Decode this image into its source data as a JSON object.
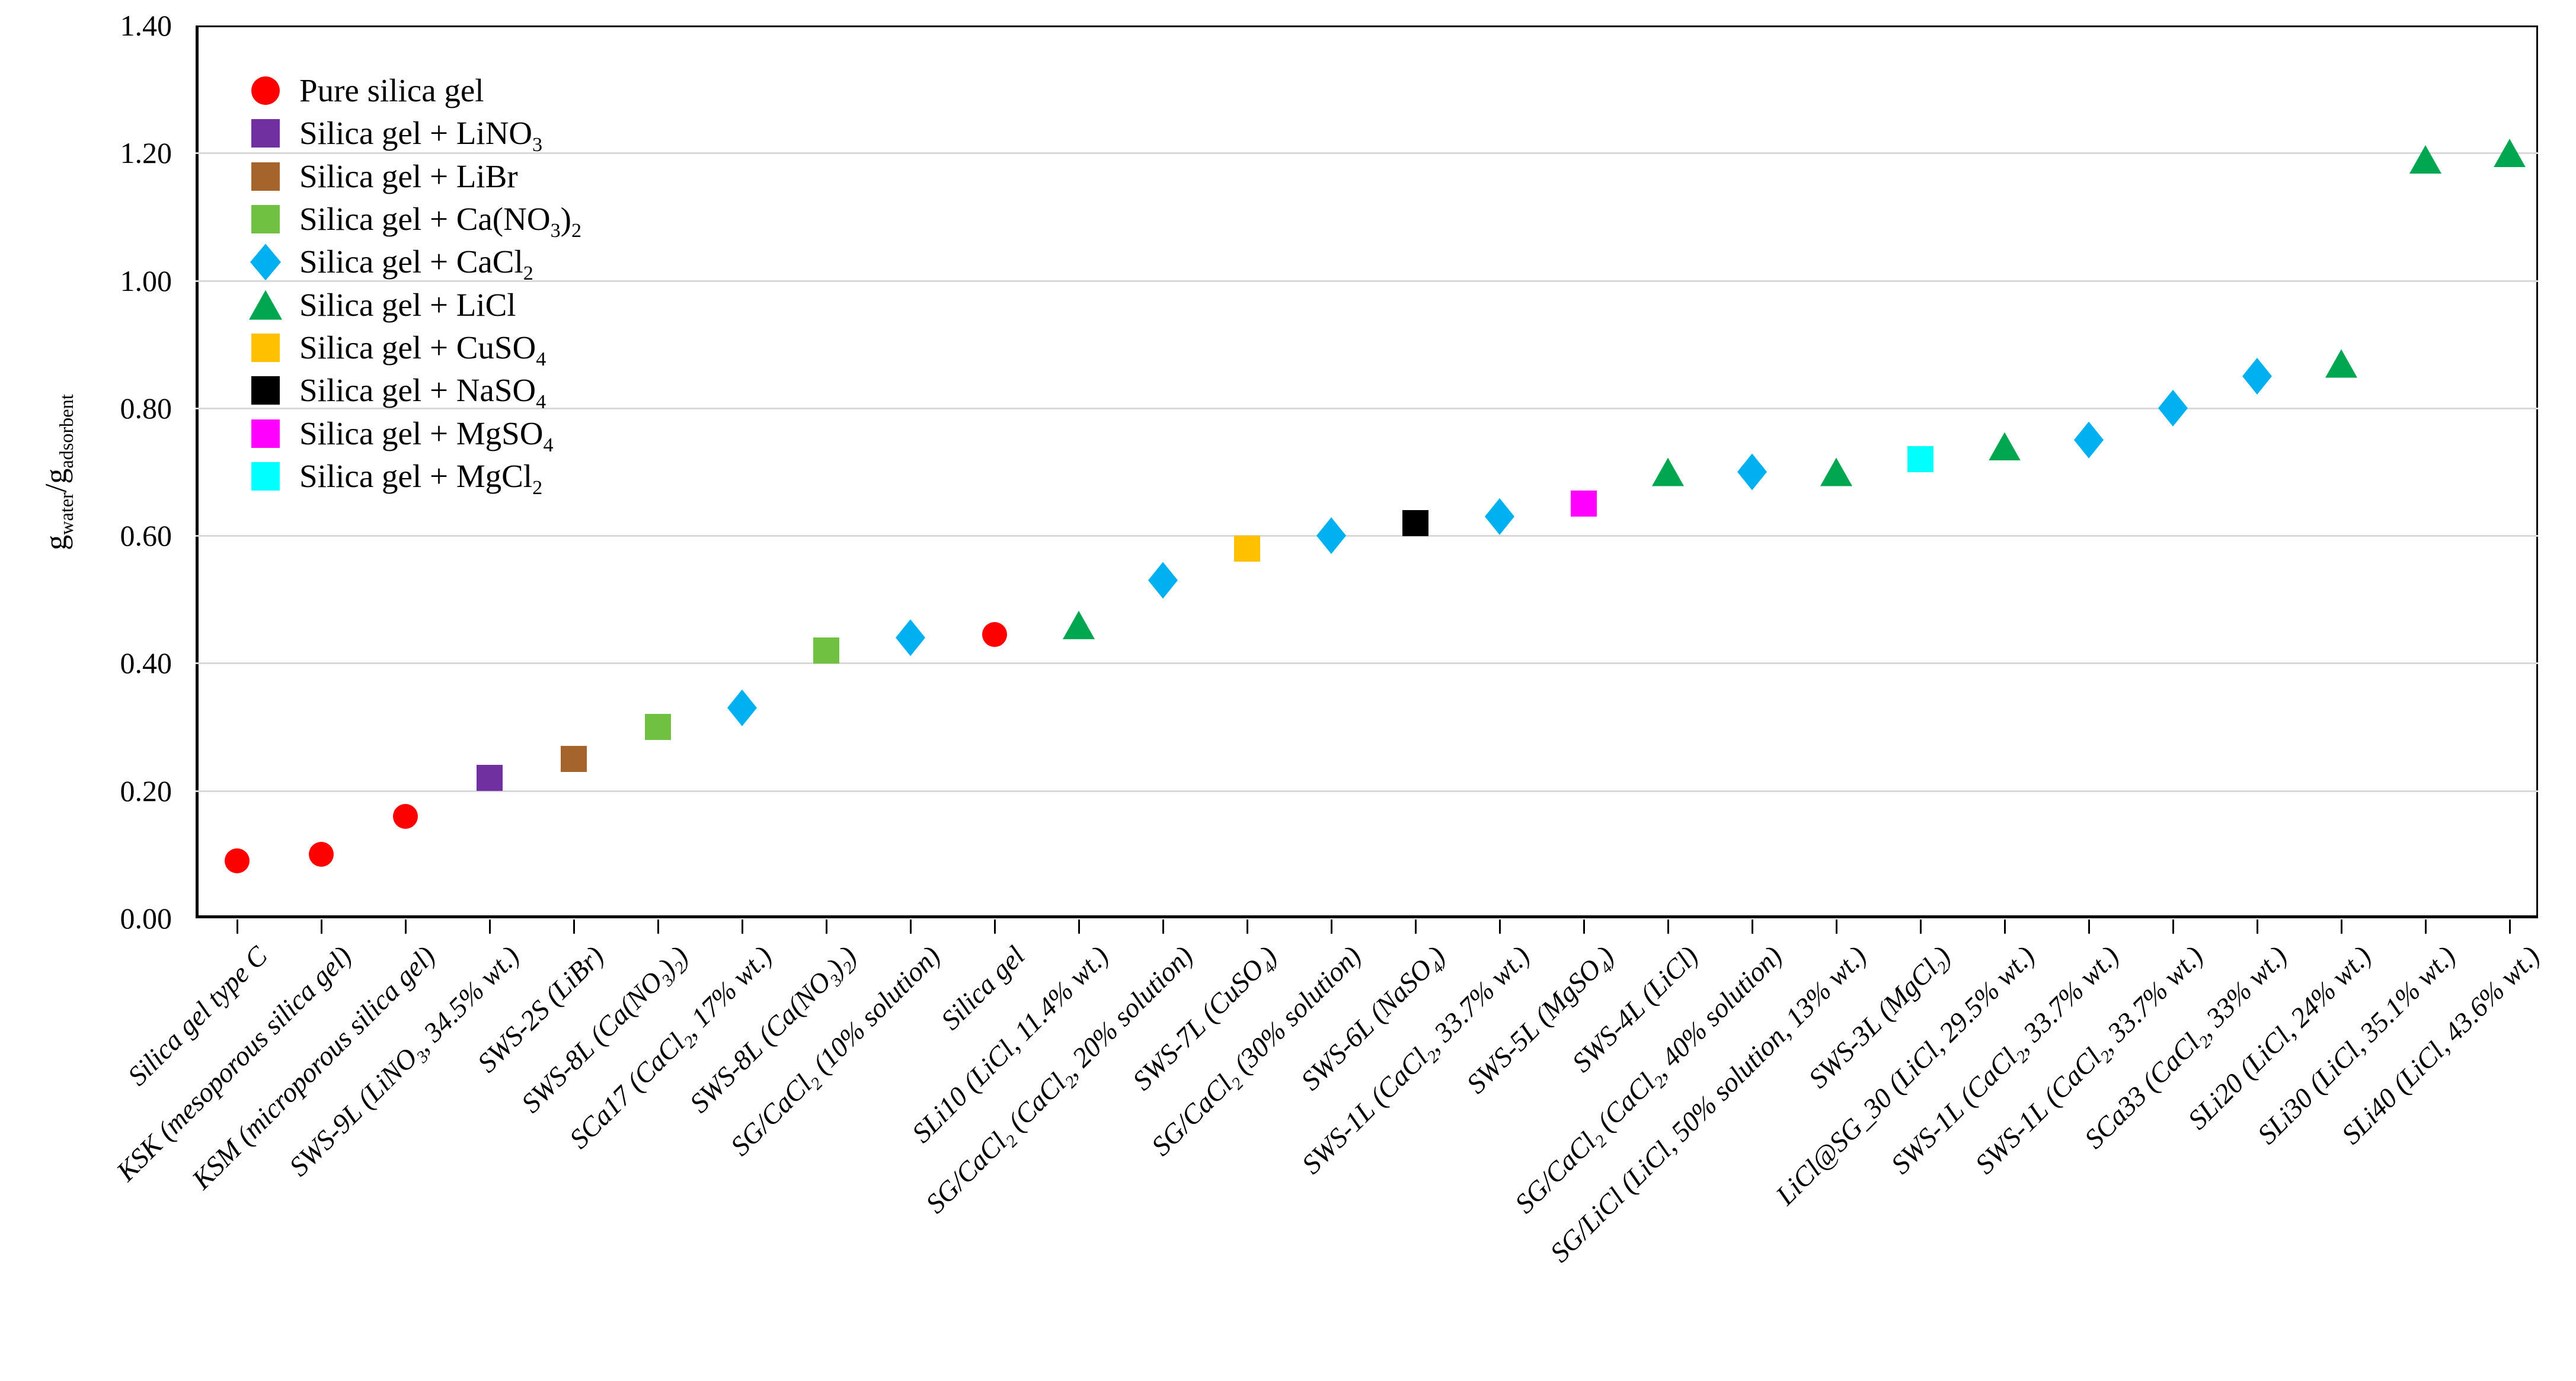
{
  "chart_data": {
    "type": "scatter",
    "title": "",
    "ylabel_parts": [
      [
        "n",
        "g"
      ],
      [
        "s",
        "water"
      ],
      [
        "n",
        "/g"
      ],
      [
        "s",
        "adsorbent"
      ]
    ],
    "y_axis": {
      "min": 0.0,
      "max": 1.4,
      "step": 0.2,
      "decimals": 2
    },
    "grid": true,
    "legend_position": "top-left-inside",
    "series": {
      "pure": {
        "label_parts": [
          [
            "n",
            "Pure silica gel"
          ]
        ],
        "color": "#ff0000",
        "shape": "circle"
      },
      "lino3": {
        "label_parts": [
          [
            "n",
            "Silica gel + LiNO"
          ],
          [
            "s",
            "3"
          ]
        ],
        "color": "#7030a0",
        "shape": "square"
      },
      "libr": {
        "label_parts": [
          [
            "n",
            "Silica gel + LiBr"
          ]
        ],
        "color": "#a5642c",
        "shape": "square"
      },
      "cano32": {
        "label_parts": [
          [
            "n",
            "Silica gel + Ca(NO"
          ],
          [
            "s",
            "3"
          ],
          [
            "n",
            ")"
          ],
          [
            "s",
            "2"
          ]
        ],
        "color": "#70c041",
        "shape": "square"
      },
      "cacl2": {
        "label_parts": [
          [
            "n",
            "Silica gel + CaCl"
          ],
          [
            "s",
            "2"
          ]
        ],
        "color": "#00b0f0",
        "shape": "diamond"
      },
      "licl": {
        "label_parts": [
          [
            "n",
            "Silica gel + LiCl"
          ]
        ],
        "color": "#00a650",
        "shape": "triangle"
      },
      "cuso4": {
        "label_parts": [
          [
            "n",
            "Silica gel + CuSO"
          ],
          [
            "s",
            "4"
          ]
        ],
        "color": "#ffc000",
        "shape": "square"
      },
      "naso4": {
        "label_parts": [
          [
            "n",
            "Silica gel + NaSO"
          ],
          [
            "s",
            "4"
          ]
        ],
        "color": "#000000",
        "shape": "square"
      },
      "mgso4": {
        "label_parts": [
          [
            "n",
            "Silica gel + MgSO"
          ],
          [
            "s",
            "4"
          ]
        ],
        "color": "#ff00ff",
        "shape": "square"
      },
      "mgcl2": {
        "label_parts": [
          [
            "n",
            "Silica gel + MgCl"
          ],
          [
            "s",
            "2"
          ]
        ],
        "color": "#00ffff",
        "shape": "square"
      }
    },
    "series_order": [
      "pure",
      "lino3",
      "libr",
      "cano32",
      "cacl2",
      "licl",
      "cuso4",
      "naso4",
      "mgso4",
      "mgcl2"
    ],
    "points": [
      {
        "parts": [
          [
            "n",
            "Silica gel type C"
          ]
        ],
        "series": "pure",
        "value": 0.09
      },
      {
        "parts": [
          [
            "n",
            "KSK (mesoporous silica gel)"
          ]
        ],
        "series": "pure",
        "value": 0.1
      },
      {
        "parts": [
          [
            "n",
            "KSM (microporous silica gel)"
          ]
        ],
        "series": "pure",
        "value": 0.16
      },
      {
        "parts": [
          [
            "n",
            "SWS-9L (LiNO"
          ],
          [
            "s",
            "3"
          ],
          [
            "n",
            ", 34.5% wt.)"
          ]
        ],
        "series": "lino3",
        "value": 0.22
      },
      {
        "parts": [
          [
            "n",
            "SWS-2S (LiBr)"
          ]
        ],
        "series": "libr",
        "value": 0.25
      },
      {
        "parts": [
          [
            "n",
            "SWS-8L (Ca(NO"
          ],
          [
            "s",
            "3"
          ],
          [
            "n",
            ")"
          ],
          [
            "s",
            "2"
          ],
          [
            "n",
            ")"
          ]
        ],
        "series": "cano32",
        "value": 0.3
      },
      {
        "parts": [
          [
            "n",
            "SCa17 (CaCl"
          ],
          [
            "s",
            "2"
          ],
          [
            "n",
            ", 17% wt.)"
          ]
        ],
        "series": "cacl2",
        "value": 0.33
      },
      {
        "parts": [
          [
            "n",
            "SWS-8L (Ca(NO"
          ],
          [
            "s",
            "3"
          ],
          [
            "n",
            ")"
          ],
          [
            "s",
            "2"
          ],
          [
            "n",
            ")"
          ]
        ],
        "series": "cano32",
        "value": 0.42
      },
      {
        "parts": [
          [
            "n",
            "SG/CaCl"
          ],
          [
            "s",
            "2"
          ],
          [
            "n",
            " (10% solution)"
          ]
        ],
        "series": "cacl2",
        "value": 0.44
      },
      {
        "parts": [
          [
            "n",
            "Silica gel"
          ]
        ],
        "series": "pure",
        "value": 0.445
      },
      {
        "parts": [
          [
            "n",
            "SLi10 (LiCl, 11.4% wt.)"
          ]
        ],
        "series": "licl",
        "value": 0.46
      },
      {
        "parts": [
          [
            "n",
            "SG/CaCl"
          ],
          [
            "s",
            "2"
          ],
          [
            "n",
            " (CaCl"
          ],
          [
            "s",
            "2"
          ],
          [
            "n",
            ", 20% solution)"
          ]
        ],
        "series": "cacl2",
        "value": 0.53
      },
      {
        "parts": [
          [
            "n",
            "SWS-7L (CuSO"
          ],
          [
            "s",
            "4"
          ],
          [
            "n",
            ")"
          ]
        ],
        "series": "cuso4",
        "value": 0.58
      },
      {
        "parts": [
          [
            "n",
            "SG/CaCl"
          ],
          [
            "s",
            "2"
          ],
          [
            "n",
            " (30% solution)"
          ]
        ],
        "series": "cacl2",
        "value": 0.6
      },
      {
        "parts": [
          [
            "n",
            "SWS-6L (NaSO"
          ],
          [
            "s",
            "4"
          ],
          [
            "n",
            ")"
          ]
        ],
        "series": "naso4",
        "value": 0.62
      },
      {
        "parts": [
          [
            "n",
            "SWS-1L (CaCl"
          ],
          [
            "s",
            "2"
          ],
          [
            "n",
            ", 33.7% wt.)"
          ]
        ],
        "series": "cacl2",
        "value": 0.63
      },
      {
        "parts": [
          [
            "n",
            "SWS-5L (MgSO"
          ],
          [
            "s",
            "4"
          ],
          [
            "n",
            ")"
          ]
        ],
        "series": "mgso4",
        "value": 0.65
      },
      {
        "parts": [
          [
            "n",
            "SWS-4L (LiCl)"
          ]
        ],
        "series": "licl",
        "value": 0.7
      },
      {
        "parts": [
          [
            "n",
            "SG/CaCl"
          ],
          [
            "s",
            "2"
          ],
          [
            "n",
            " (CaCl"
          ],
          [
            "s",
            "2"
          ],
          [
            "n",
            ", 40% solution)"
          ]
        ],
        "series": "cacl2",
        "value": 0.7
      },
      {
        "parts": [
          [
            "n",
            "SG/LiCl (LiCl, 50% solution, 13% wt.)"
          ]
        ],
        "series": "licl",
        "value": 0.7
      },
      {
        "parts": [
          [
            "n",
            "SWS-3L (MgCl"
          ],
          [
            "s",
            "2"
          ],
          [
            "n",
            ")"
          ]
        ],
        "series": "mgcl2",
        "value": 0.72
      },
      {
        "parts": [
          [
            "n",
            "LiCl@SG_30 (LiCl, 29.5% wt.)"
          ]
        ],
        "series": "licl",
        "value": 0.74
      },
      {
        "parts": [
          [
            "n",
            "SWS-1L (CaCl"
          ],
          [
            "s",
            "2"
          ],
          [
            "n",
            ", 33.7% wt.)"
          ]
        ],
        "series": "cacl2",
        "value": 0.75
      },
      {
        "parts": [
          [
            "n",
            "SWS-1L (CaCl"
          ],
          [
            "s",
            "2"
          ],
          [
            "n",
            ", 33.7% wt.)"
          ]
        ],
        "series": "cacl2",
        "value": 0.8
      },
      {
        "parts": [
          [
            "n",
            "SCa33 (CaCl"
          ],
          [
            "s",
            "2"
          ],
          [
            "n",
            ", 33% wt.)"
          ]
        ],
        "series": "cacl2",
        "value": 0.85
      },
      {
        "parts": [
          [
            "n",
            "SLi20 (LiCl, 24% wt.)"
          ]
        ],
        "series": "licl",
        "value": 0.87
      },
      {
        "parts": [
          [
            "n",
            "SLi30 (LiCl, 35.1% wt.)"
          ]
        ],
        "series": "licl",
        "value": 1.19
      },
      {
        "parts": [
          [
            "n",
            "SLi40 (LiCl, 43.6% wt.)"
          ]
        ],
        "series": "licl",
        "value": 1.2
      }
    ]
  },
  "colors": {
    "background": "#ffffff",
    "axis": "#000000",
    "gridline": "#d9d9d9"
  }
}
